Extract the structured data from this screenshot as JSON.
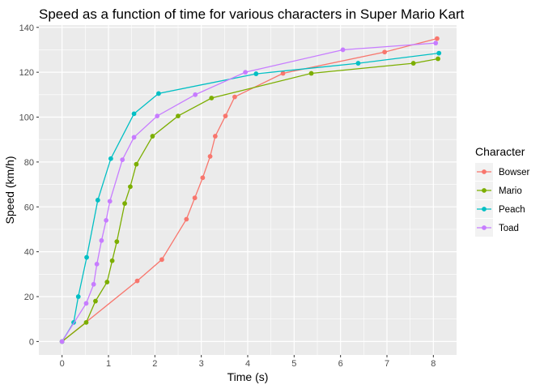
{
  "chart_data": {
    "type": "line",
    "title": "Speed as a function of time for various characters in Super Mario Kart",
    "xlabel": "Time (s)",
    "ylabel": "Speed (km/h)",
    "xlim": [
      -0.5,
      8.5
    ],
    "ylim": [
      -6,
      141
    ],
    "x_ticks": [
      0,
      1,
      2,
      3,
      4,
      5,
      6,
      7,
      8
    ],
    "y_ticks": [
      0,
      20,
      40,
      60,
      80,
      100,
      120,
      140
    ],
    "grid": true,
    "legend": {
      "title": "Character",
      "position": "right"
    },
    "series": [
      {
        "name": "Bowser",
        "color": "#F8766D",
        "points": [
          [
            0,
            0
          ],
          [
            1.62,
            27
          ],
          [
            2.15,
            36.5
          ],
          [
            2.68,
            54.5
          ],
          [
            2.86,
            64
          ],
          [
            3.03,
            73
          ],
          [
            3.19,
            82.5
          ],
          [
            3.3,
            91.5
          ],
          [
            3.52,
            100.5
          ],
          [
            3.72,
            109
          ],
          [
            4.76,
            119.5
          ],
          [
            6.95,
            129
          ],
          [
            8.08,
            135
          ]
        ]
      },
      {
        "name": "Mario",
        "color": "#7CAE00",
        "points": [
          [
            0,
            0
          ],
          [
            0.52,
            8.5
          ],
          [
            0.72,
            18
          ],
          [
            0.97,
            26.5
          ],
          [
            1.08,
            36
          ],
          [
            1.18,
            44.5
          ],
          [
            1.35,
            61.5
          ],
          [
            1.47,
            69
          ],
          [
            1.6,
            79
          ],
          [
            1.95,
            91.5
          ],
          [
            2.5,
            100.5
          ],
          [
            3.22,
            108.5
          ],
          [
            5.37,
            119.5
          ],
          [
            7.57,
            124
          ],
          [
            8.1,
            126
          ]
        ]
      },
      {
        "name": "Peach",
        "color": "#00BFC4",
        "points": [
          [
            0,
            0
          ],
          [
            0.25,
            8.5
          ],
          [
            0.35,
            20
          ],
          [
            0.53,
            37.5
          ],
          [
            0.77,
            63
          ],
          [
            1.05,
            81.5
          ],
          [
            1.55,
            101.5
          ],
          [
            2.08,
            110.5
          ],
          [
            4.18,
            119.3
          ],
          [
            6.38,
            124
          ],
          [
            8.12,
            128.5
          ]
        ]
      },
      {
        "name": "Toad",
        "color": "#C77CFF",
        "points": [
          [
            0,
            0
          ],
          [
            0.52,
            17
          ],
          [
            0.68,
            25.5
          ],
          [
            0.75,
            34.5
          ],
          [
            0.85,
            45
          ],
          [
            0.95,
            54
          ],
          [
            1.03,
            62.5
          ],
          [
            1.3,
            81
          ],
          [
            1.55,
            91
          ],
          [
            2.05,
            100.5
          ],
          [
            2.87,
            110
          ],
          [
            3.95,
            120
          ],
          [
            6.05,
            130
          ],
          [
            8.05,
            133
          ]
        ]
      }
    ]
  }
}
